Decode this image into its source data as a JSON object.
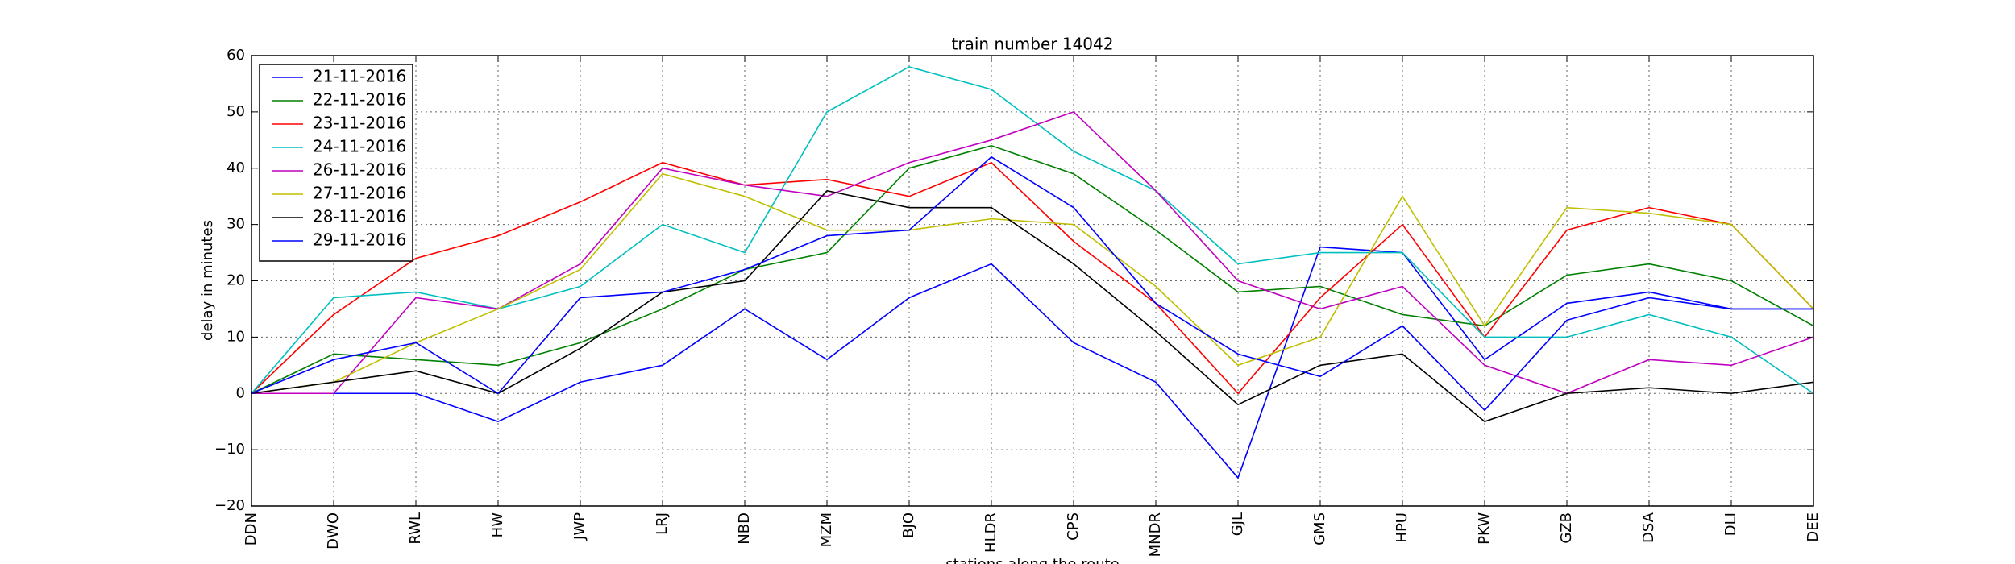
{
  "chart_data": {
    "type": "line",
    "title": "train number 14042",
    "xlabel": "stations along the route",
    "ylabel": "delay in minutes",
    "categories": [
      "DDN",
      "DWO",
      "RWL",
      "HW",
      "JWP",
      "LRJ",
      "NBD",
      "MZM",
      "BJO",
      "HLDR",
      "CPS",
      "MNDR",
      "GJL",
      "GMS",
      "HPU",
      "PKW",
      "GZB",
      "DSA",
      "DLI",
      "DEE"
    ],
    "ylim": [
      -20,
      60
    ],
    "yticks": [
      {
        "value": -20,
        "label": "−20"
      },
      {
        "value": -10,
        "label": "−10"
      },
      0,
      10,
      20,
      30,
      40,
      50,
      60
    ],
    "grid": true,
    "legend": "upper left",
    "series": [
      {
        "name": "21-11-2016",
        "color": "#0000ff",
        "values": [
          0,
          0,
          0,
          -5,
          2,
          5,
          15,
          6,
          17,
          23,
          9,
          2,
          -15,
          26,
          25,
          6,
          16,
          18,
          15,
          15
        ]
      },
      {
        "name": "22-11-2016",
        "color": "#008000",
        "values": [
          0,
          7,
          6,
          5,
          9,
          15,
          22,
          25,
          40,
          44,
          39,
          29,
          18,
          19,
          14,
          12,
          21,
          23,
          20,
          12
        ]
      },
      {
        "name": "23-11-2016",
        "color": "#ff0000",
        "values": [
          0,
          14,
          24,
          28,
          34,
          41,
          37,
          38,
          35,
          41,
          27,
          16,
          0,
          17,
          30,
          10,
          29,
          33,
          30,
          15
        ]
      },
      {
        "name": "24-11-2016",
        "color": "#00bfbf",
        "values": [
          0,
          17,
          18,
          15,
          19,
          30,
          25,
          50,
          58,
          54,
          43,
          36,
          23,
          25,
          25,
          10,
          10,
          14,
          10,
          0
        ]
      },
      {
        "name": "26-11-2016",
        "color": "#bf00bf",
        "values": [
          0,
          0,
          17,
          15,
          23,
          40,
          37,
          35,
          41,
          45,
          50,
          36,
          20,
          15,
          19,
          5,
          0,
          6,
          5,
          10
        ]
      },
      {
        "name": "27-11-2016",
        "color": "#bfbf00",
        "values": [
          0,
          2,
          9,
          15,
          22,
          39,
          35,
          29,
          29,
          31,
          30,
          19,
          5,
          10,
          35,
          12,
          33,
          32,
          30,
          15
        ]
      },
      {
        "name": "28-11-2016",
        "color": "#000000",
        "values": [
          0,
          2,
          4,
          0,
          8,
          18,
          20,
          36,
          33,
          33,
          23,
          11,
          -2,
          5,
          7,
          -5,
          0,
          1,
          0,
          2
        ]
      },
      {
        "name": "29-11-2016",
        "color": "#0000ff",
        "values": [
          0,
          6,
          9,
          0,
          17,
          18,
          22,
          28,
          29,
          42,
          33,
          16,
          7,
          3,
          12,
          -3,
          13,
          17,
          15,
          15
        ]
      }
    ]
  }
}
